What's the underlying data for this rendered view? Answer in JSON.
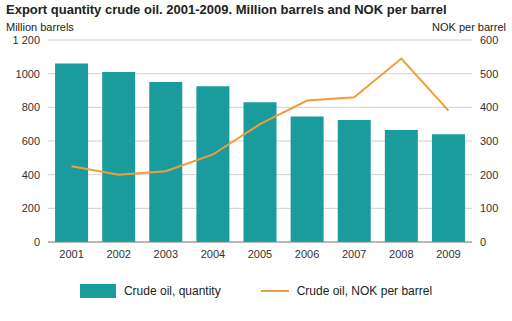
{
  "chart_data": {
    "type": "bar",
    "title": "Export quantity crude oil. 2001-2009. Million barrels and NOK per barrel",
    "ylabel": "Million barrels",
    "y2label": "NOK per barrel",
    "categories": [
      "2001",
      "2002",
      "2003",
      "2004",
      "2005",
      "2006",
      "2007",
      "2008",
      "2009"
    ],
    "series": [
      {
        "name": "Crude oil, quantity",
        "type": "bar",
        "color": "#1a9c9c",
        "values": [
          1060,
          1010,
          950,
          925,
          830,
          745,
          725,
          665,
          640
        ]
      },
      {
        "name": "Crude oil, NOK per barrel",
        "type": "line",
        "axis": "y2",
        "color": "#f39c3c",
        "values": [
          225,
          200,
          210,
          260,
          350,
          420,
          430,
          545,
          390
        ]
      }
    ],
    "ylim": [
      0,
      1200
    ],
    "yticks": [
      0,
      200,
      400,
      600,
      800,
      1000,
      {
        "value": 1200,
        "label": "1 200"
      }
    ],
    "y2lim": [
      0,
      600
    ],
    "y2ticks": [
      0,
      100,
      200,
      300,
      400,
      500,
      600
    ],
    "grid": true,
    "legend": "bottom"
  }
}
